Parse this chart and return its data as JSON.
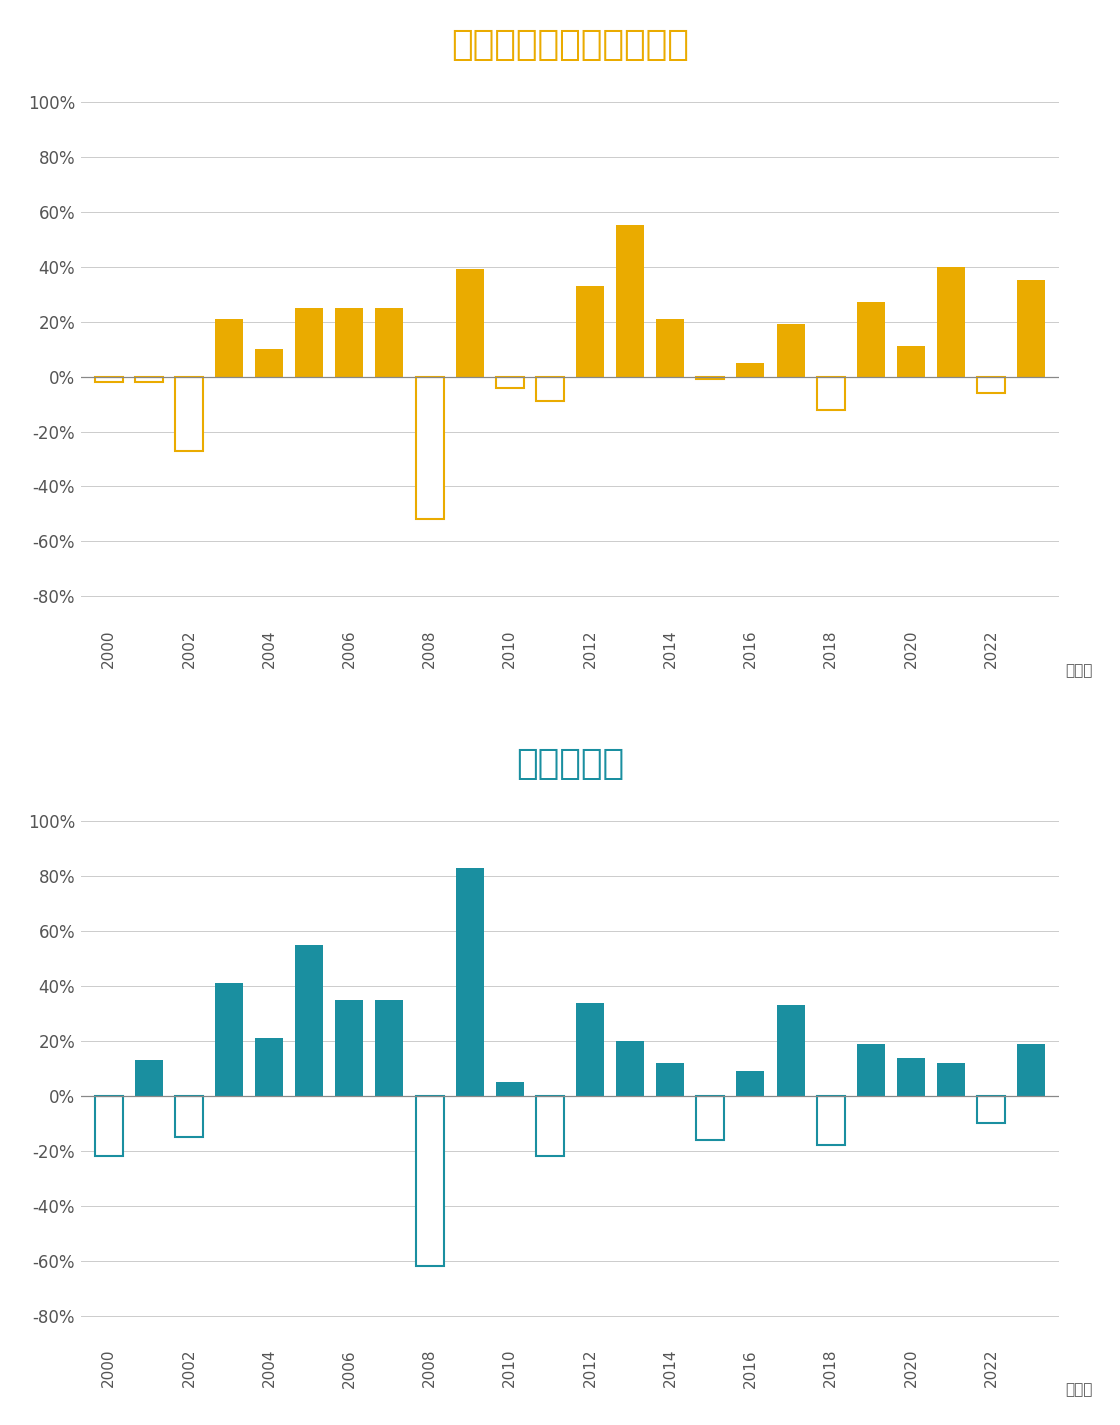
{
  "years": [
    2000,
    2001,
    2002,
    2003,
    2004,
    2005,
    2006,
    2007,
    2008,
    2009,
    2010,
    2011,
    2012,
    2013,
    2014,
    2015,
    2016,
    2017,
    2018,
    2019,
    2020,
    2021,
    2022,
    2023
  ],
  "developed_values": [
    -2,
    -2,
    -27,
    21,
    10,
    25,
    25,
    25,
    -52,
    39,
    -4,
    -9,
    33,
    55,
    21,
    -1,
    5,
    19,
    -12,
    27,
    11,
    40,
    -6,
    35
  ],
  "emerging_values": [
    -22,
    13,
    -15,
    41,
    21,
    55,
    35,
    35,
    -62,
    83,
    5,
    -22,
    34,
    20,
    12,
    -16,
    9,
    33,
    -18,
    19,
    14,
    12,
    -10,
    19
  ],
  "title1": "先進国株式（除く日本）",
  "title2": "新興国株式",
  "color_developed_pos": "#EAAB00",
  "color_developed_neg_edge": "#EAAB00",
  "color_emerging_pos": "#1A8FA0",
  "color_emerging_neg_edge": "#1A8FA0",
  "ylim": [
    -90,
    110
  ],
  "yticks": [
    -80,
    -60,
    -40,
    -20,
    0,
    20,
    40,
    60,
    80,
    100
  ],
  "xlabel_suffix": "（年）",
  "background_color": "#FFFFFF",
  "grid_color": "#CCCCCC"
}
